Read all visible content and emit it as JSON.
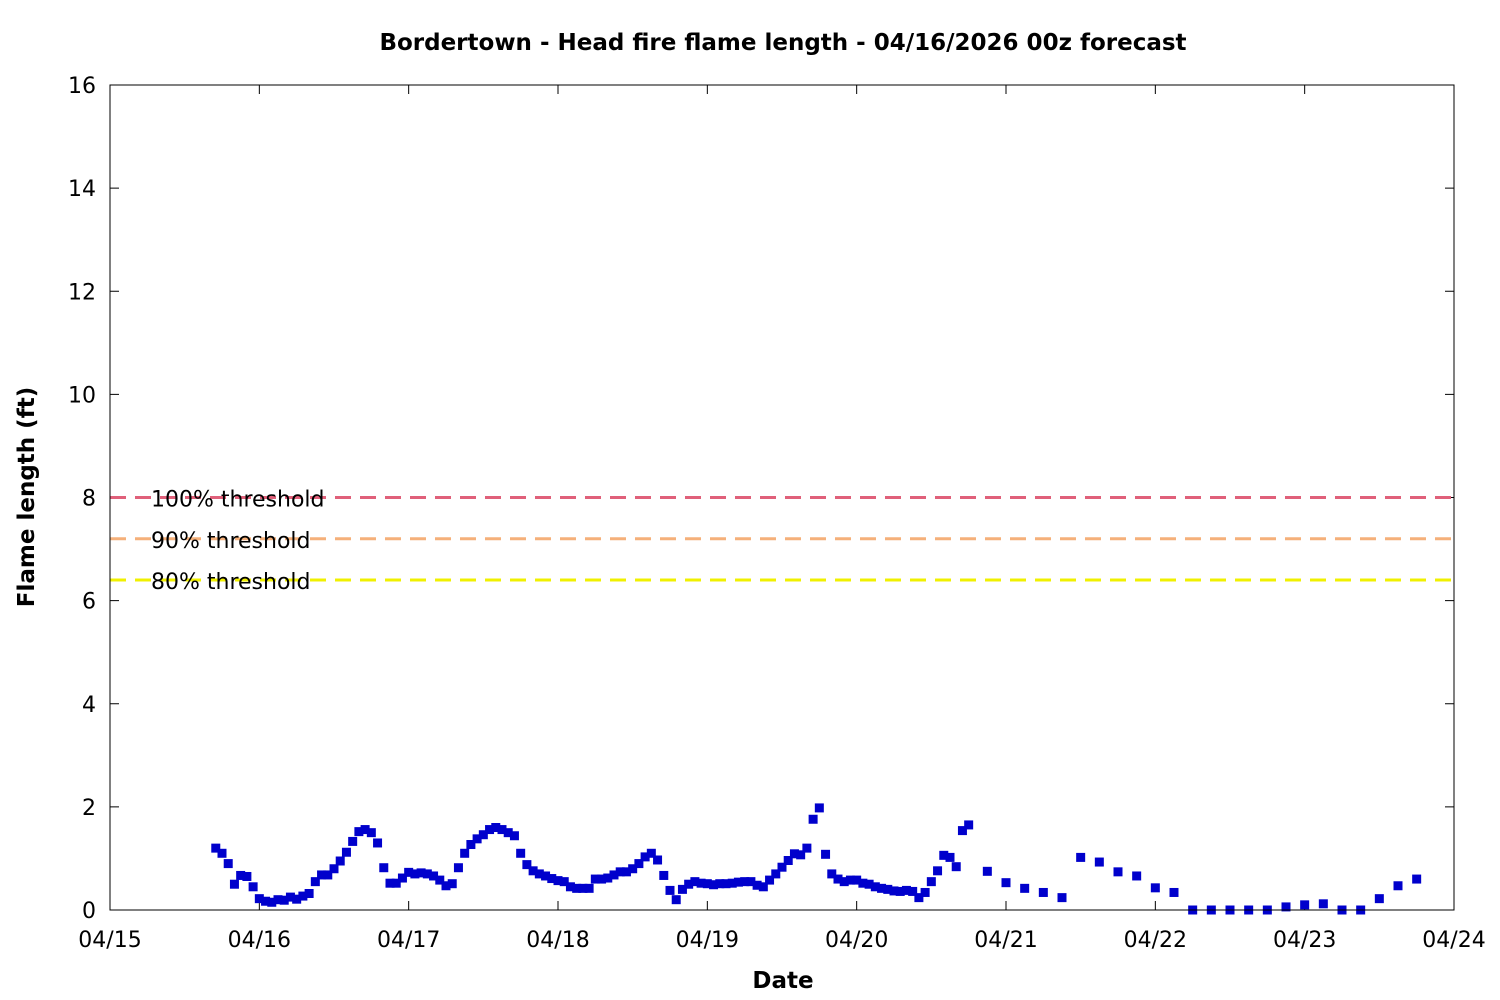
{
  "chart_data": {
    "type": "scatter",
    "title": "Bordertown - Head fire flame length - 04/16/2026 00z forecast",
    "xlabel": "Date",
    "ylabel": "Flame length (ft)",
    "x_axis": {
      "type": "date",
      "range": [
        "2026-04-15T00:00",
        "2026-04-24T00:00"
      ],
      "tick_labels": [
        "04/15",
        "04/16",
        "04/17",
        "04/18",
        "04/19",
        "04/20",
        "04/21",
        "04/22",
        "04/23",
        "04/24"
      ]
    },
    "ylim": [
      0,
      16
    ],
    "y_ticks": [
      0,
      2,
      4,
      6,
      8,
      10,
      12,
      14,
      16
    ],
    "grid": false,
    "legend_placement": "left",
    "thresholds": [
      {
        "label": "100% threshold",
        "value": 8.0,
        "color": "#e0607a"
      },
      {
        "label": "90% threshold",
        "value": 7.2,
        "color": "#f5b07a"
      },
      {
        "label": "80% threshold",
        "value": 6.4,
        "color": "#f0f000"
      }
    ],
    "series": [
      {
        "marker_color": "#0000cc",
        "points": [
          [
            "2026-04-15T17:00",
            1.2
          ],
          [
            "2026-04-15T18:00",
            1.1
          ],
          [
            "2026-04-15T19:00",
            0.9
          ],
          [
            "2026-04-15T20:00",
            0.5
          ],
          [
            "2026-04-15T21:00",
            0.67
          ],
          [
            "2026-04-15T22:00",
            0.65
          ],
          [
            "2026-04-15T23:00",
            0.45
          ],
          [
            "2026-04-16T00:00",
            0.22
          ],
          [
            "2026-04-16T01:00",
            0.17
          ],
          [
            "2026-04-16T02:00",
            0.15
          ],
          [
            "2026-04-16T03:00",
            0.2
          ],
          [
            "2026-04-16T04:00",
            0.19
          ],
          [
            "2026-04-16T05:00",
            0.25
          ],
          [
            "2026-04-16T06:00",
            0.21
          ],
          [
            "2026-04-16T07:00",
            0.27
          ],
          [
            "2026-04-16T08:00",
            0.32
          ],
          [
            "2026-04-16T09:00",
            0.55
          ],
          [
            "2026-04-16T10:00",
            0.68
          ],
          [
            "2026-04-16T11:00",
            0.68
          ],
          [
            "2026-04-16T12:00",
            0.8
          ],
          [
            "2026-04-16T13:00",
            0.95
          ],
          [
            "2026-04-16T14:00",
            1.12
          ],
          [
            "2026-04-16T15:00",
            1.33
          ],
          [
            "2026-04-16T16:00",
            1.52
          ],
          [
            "2026-04-16T17:00",
            1.56
          ],
          [
            "2026-04-16T18:00",
            1.5
          ],
          [
            "2026-04-16T19:00",
            1.3
          ],
          [
            "2026-04-16T20:00",
            0.82
          ],
          [
            "2026-04-16T21:00",
            0.52
          ],
          [
            "2026-04-16T22:00",
            0.52
          ],
          [
            "2026-04-16T23:00",
            0.62
          ],
          [
            "2026-04-17T00:00",
            0.73
          ],
          [
            "2026-04-17T01:00",
            0.7
          ],
          [
            "2026-04-17T02:00",
            0.72
          ],
          [
            "2026-04-17T03:00",
            0.7
          ],
          [
            "2026-04-17T04:00",
            0.66
          ],
          [
            "2026-04-17T05:00",
            0.58
          ],
          [
            "2026-04-17T06:00",
            0.47
          ],
          [
            "2026-04-17T07:00",
            0.51
          ],
          [
            "2026-04-17T08:00",
            0.82
          ],
          [
            "2026-04-17T09:00",
            1.1
          ],
          [
            "2026-04-17T10:00",
            1.27
          ],
          [
            "2026-04-17T11:00",
            1.38
          ],
          [
            "2026-04-17T12:00",
            1.46
          ],
          [
            "2026-04-17T13:00",
            1.56
          ],
          [
            "2026-04-17T14:00",
            1.6
          ],
          [
            "2026-04-17T15:00",
            1.56
          ],
          [
            "2026-04-17T16:00",
            1.5
          ],
          [
            "2026-04-17T17:00",
            1.44
          ],
          [
            "2026-04-17T18:00",
            1.1
          ],
          [
            "2026-04-17T19:00",
            0.88
          ],
          [
            "2026-04-17T20:00",
            0.76
          ],
          [
            "2026-04-17T21:00",
            0.7
          ],
          [
            "2026-04-17T22:00",
            0.66
          ],
          [
            "2026-04-17T23:00",
            0.61
          ],
          [
            "2026-04-18T00:00",
            0.57
          ],
          [
            "2026-04-18T01:00",
            0.55
          ],
          [
            "2026-04-18T02:00",
            0.45
          ],
          [
            "2026-04-18T03:00",
            0.42
          ],
          [
            "2026-04-18T04:00",
            0.42
          ],
          [
            "2026-04-18T05:00",
            0.42
          ],
          [
            "2026-04-18T06:00",
            0.6
          ],
          [
            "2026-04-18T07:00",
            0.6
          ],
          [
            "2026-04-18T08:00",
            0.62
          ],
          [
            "2026-04-18T09:00",
            0.68
          ],
          [
            "2026-04-18T10:00",
            0.74
          ],
          [
            "2026-04-18T11:00",
            0.74
          ],
          [
            "2026-04-18T12:00",
            0.8
          ],
          [
            "2026-04-18T13:00",
            0.9
          ],
          [
            "2026-04-18T14:00",
            1.03
          ],
          [
            "2026-04-18T15:00",
            1.1
          ],
          [
            "2026-04-18T16:00",
            0.97
          ],
          [
            "2026-04-18T17:00",
            0.67
          ],
          [
            "2026-04-18T18:00",
            0.38
          ],
          [
            "2026-04-18T19:00",
            0.2
          ],
          [
            "2026-04-18T20:00",
            0.4
          ],
          [
            "2026-04-18T21:00",
            0.5
          ],
          [
            "2026-04-18T22:00",
            0.55
          ],
          [
            "2026-04-18T23:00",
            0.52
          ],
          [
            "2026-04-19T00:00",
            0.51
          ],
          [
            "2026-04-19T01:00",
            0.49
          ],
          [
            "2026-04-19T02:00",
            0.51
          ],
          [
            "2026-04-19T03:00",
            0.51
          ],
          [
            "2026-04-19T04:00",
            0.52
          ],
          [
            "2026-04-19T05:00",
            0.54
          ],
          [
            "2026-04-19T06:00",
            0.55
          ],
          [
            "2026-04-19T07:00",
            0.55
          ],
          [
            "2026-04-19T08:00",
            0.48
          ],
          [
            "2026-04-19T09:00",
            0.45
          ],
          [
            "2026-04-19T10:00",
            0.58
          ],
          [
            "2026-04-19T11:00",
            0.7
          ],
          [
            "2026-04-19T12:00",
            0.83
          ],
          [
            "2026-04-19T13:00",
            0.96
          ],
          [
            "2026-04-19T14:00",
            1.09
          ],
          [
            "2026-04-19T15:00",
            1.07
          ],
          [
            "2026-04-19T16:00",
            1.2
          ],
          [
            "2026-04-19T17:00",
            1.76
          ],
          [
            "2026-04-19T18:00",
            1.98
          ],
          [
            "2026-04-19T19:00",
            1.08
          ],
          [
            "2026-04-19T20:00",
            0.7
          ],
          [
            "2026-04-19T21:00",
            0.6
          ],
          [
            "2026-04-19T22:00",
            0.55
          ],
          [
            "2026-04-19T23:00",
            0.58
          ],
          [
            "2026-04-20T00:00",
            0.58
          ],
          [
            "2026-04-20T01:00",
            0.52
          ],
          [
            "2026-04-20T02:00",
            0.5
          ],
          [
            "2026-04-20T03:00",
            0.45
          ],
          [
            "2026-04-20T04:00",
            0.42
          ],
          [
            "2026-04-20T05:00",
            0.4
          ],
          [
            "2026-04-20T06:00",
            0.37
          ],
          [
            "2026-04-20T07:00",
            0.36
          ],
          [
            "2026-04-20T08:00",
            0.38
          ],
          [
            "2026-04-20T09:00",
            0.36
          ],
          [
            "2026-04-20T10:00",
            0.24
          ],
          [
            "2026-04-20T11:00",
            0.34
          ],
          [
            "2026-04-20T12:00",
            0.55
          ],
          [
            "2026-04-20T13:00",
            0.76
          ],
          [
            "2026-04-20T14:00",
            1.06
          ],
          [
            "2026-04-20T15:00",
            1.02
          ],
          [
            "2026-04-20T16:00",
            0.84
          ],
          [
            "2026-04-20T17:00",
            1.54
          ],
          [
            "2026-04-20T18:00",
            1.65
          ],
          [
            "2026-04-20T21:00",
            0.75
          ],
          [
            "2026-04-21T00:00",
            0.53
          ],
          [
            "2026-04-21T03:00",
            0.42
          ],
          [
            "2026-04-21T06:00",
            0.34
          ],
          [
            "2026-04-21T09:00",
            0.24
          ],
          [
            "2026-04-21T12:00",
            1.02
          ],
          [
            "2026-04-21T15:00",
            0.93
          ],
          [
            "2026-04-21T18:00",
            0.74
          ],
          [
            "2026-04-21T21:00",
            0.66
          ],
          [
            "2026-04-22T00:00",
            0.43
          ],
          [
            "2026-04-22T03:00",
            0.34
          ],
          [
            "2026-04-22T06:00",
            0.0
          ],
          [
            "2026-04-22T09:00",
            0.0
          ],
          [
            "2026-04-22T12:00",
            0.0
          ],
          [
            "2026-04-22T15:00",
            0.0
          ],
          [
            "2026-04-22T18:00",
            0.0
          ],
          [
            "2026-04-22T21:00",
            0.06
          ],
          [
            "2026-04-23T00:00",
            0.1
          ],
          [
            "2026-04-23T03:00",
            0.12
          ],
          [
            "2026-04-23T06:00",
            0.0
          ],
          [
            "2026-04-23T09:00",
            0.0
          ],
          [
            "2026-04-23T12:00",
            0.22
          ],
          [
            "2026-04-23T15:00",
            0.47
          ],
          [
            "2026-04-23T18:00",
            0.6
          ]
        ]
      }
    ]
  }
}
